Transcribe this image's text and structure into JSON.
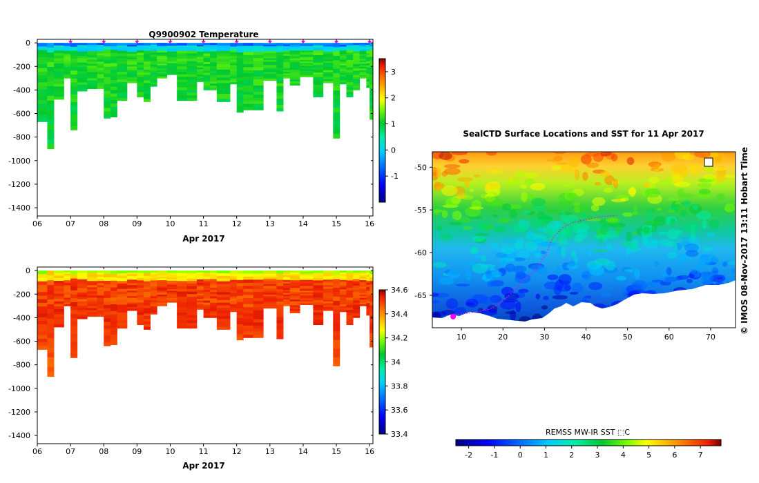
{
  "chart_data": [
    {
      "type": "heatmap",
      "id": "temperature",
      "title": "Q9900902  Temperature",
      "xlabel": "Apr 2017",
      "xlim": [
        6,
        16.1
      ],
      "ylim": [
        -1470,
        30
      ],
      "x_ticks": [
        "06",
        "07",
        "08",
        "09",
        "10",
        "11",
        "12",
        "13",
        "14",
        "15",
        "16"
      ],
      "y_ticks": [
        0,
        -200,
        -400,
        -600,
        -800,
        -1000,
        -1200,
        -1400
      ],
      "colorbar_range": [
        -2.0,
        3.5
      ],
      "colorbar_ticks": [
        -1,
        0,
        1,
        2,
        3
      ],
      "profile_markers_day": [
        7,
        8,
        9,
        10,
        11,
        12,
        13,
        14,
        15,
        16
      ],
      "values": {
        "surface": -0.6,
        "upper": 0.1,
        "deep": 1.2
      }
    },
    {
      "type": "heatmap",
      "id": "salinity",
      "title": "",
      "xlabel": "Apr 2017",
      "xlim": [
        6,
        16.1
      ],
      "ylim": [
        -1470,
        30
      ],
      "x_ticks": [
        "06",
        "07",
        "08",
        "09",
        "10",
        "11",
        "12",
        "13",
        "14",
        "15",
        "16"
      ],
      "y_ticks": [
        0,
        -200,
        -400,
        -600,
        -800,
        -1000,
        -1200,
        -1400
      ],
      "colorbar_range": [
        33.4,
        34.6
      ],
      "colorbar_ticks": [
        33.4,
        33.6,
        33.8,
        34,
        34.2,
        34.4,
        34.6
      ],
      "values": {
        "surface": 34.2,
        "upper": 34.45,
        "deep": 34.55
      }
    },
    {
      "type": "heatmap",
      "id": "sst_map",
      "title": "SealCTD Surface Locations and SST for 11 Apr 2017",
      "xlim": [
        3,
        76
      ],
      "ylim": [
        -68.8,
        -48.2
      ],
      "x_ticks": [
        10,
        20,
        30,
        40,
        50,
        60,
        70
      ],
      "y_ticks": [
        -50,
        -55,
        -60,
        -65
      ],
      "colorbar_label": "REMSS MW-IR SST ⬚C",
      "colorbar_range": [
        -2.5,
        7.8
      ],
      "colorbar_ticks": [
        -2,
        -1,
        0,
        1,
        2,
        3,
        4,
        5,
        6,
        7
      ],
      "track_end_lon": 8,
      "track_end_lat": -67.5
    }
  ],
  "watermark": "©  IMOS 08-Nov-2017 13:11 Hobart Time",
  "colors": {
    "marker": "#ff00ff",
    "land": "#ffffff"
  },
  "depth_profile": [
    [
      6.0,
      670
    ],
    [
      6.3,
      900
    ],
    [
      6.5,
      480
    ],
    [
      6.8,
      300
    ],
    [
      7.0,
      740
    ],
    [
      7.2,
      410
    ],
    [
      7.5,
      390
    ],
    [
      7.8,
      390
    ],
    [
      8.0,
      640
    ],
    [
      8.2,
      630
    ],
    [
      8.4,
      490
    ],
    [
      8.7,
      340
    ],
    [
      9.0,
      460
    ],
    [
      9.2,
      500
    ],
    [
      9.4,
      370
    ],
    [
      9.6,
      300
    ],
    [
      9.9,
      270
    ],
    [
      10.2,
      490
    ],
    [
      10.5,
      490
    ],
    [
      10.8,
      330
    ],
    [
      11.0,
      400
    ],
    [
      11.2,
      400
    ],
    [
      11.4,
      500
    ],
    [
      11.8,
      350
    ],
    [
      12.0,
      590
    ],
    [
      12.2,
      570
    ],
    [
      12.5,
      570
    ],
    [
      12.8,
      320
    ],
    [
      13.2,
      580
    ],
    [
      13.4,
      300
    ],
    [
      13.6,
      360
    ],
    [
      13.9,
      290
    ],
    [
      14.3,
      460
    ],
    [
      14.6,
      340
    ],
    [
      14.9,
      810
    ],
    [
      15.1,
      350
    ],
    [
      15.3,
      460
    ],
    [
      15.5,
      400
    ],
    [
      15.7,
      300
    ],
    [
      15.9,
      380
    ],
    [
      16.0,
      650
    ]
  ]
}
